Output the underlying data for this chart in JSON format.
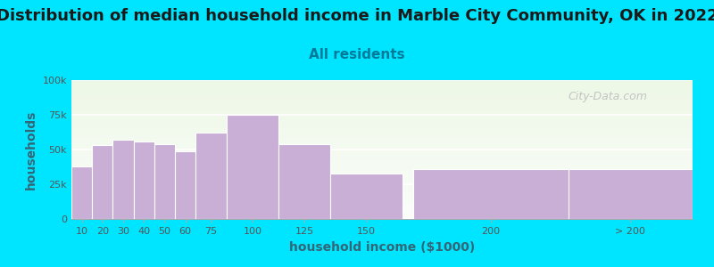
{
  "title": "Distribution of median household income in Marble City Community, OK in 2022",
  "subtitle": "All residents",
  "xlabel": "household income ($1000)",
  "ylabel": "households",
  "bar_labels": [
    "10",
    "20",
    "30",
    "40",
    "50",
    "60",
    "75",
    "100",
    "125",
    "150",
    "200",
    "> 200"
  ],
  "bar_values": [
    38000,
    53000,
    57000,
    56000,
    54000,
    49000,
    62000,
    75000,
    54000,
    33000,
    36000,
    36000
  ],
  "bar_color": "#c9aed6",
  "bar_edgecolor": "#ffffff",
  "background_color": "#00e5ff",
  "title_fontsize": 13,
  "subtitle_fontsize": 11,
  "subtitle_color": "#007a9a",
  "tick_color": "#555555",
  "ylabel_color": "#336677",
  "xlabel_color": "#336677",
  "ylim": [
    0,
    100000
  ],
  "yticks": [
    0,
    25000,
    50000,
    75000,
    100000
  ],
  "watermark": "City-Data.com",
  "lefts": [
    0,
    10,
    20,
    30,
    40,
    50,
    60,
    75,
    100,
    125,
    165,
    240
  ],
  "widths": [
    10,
    10,
    10,
    10,
    10,
    10,
    15,
    25,
    25,
    35,
    75,
    60
  ],
  "xlim": [
    0,
    300
  ]
}
